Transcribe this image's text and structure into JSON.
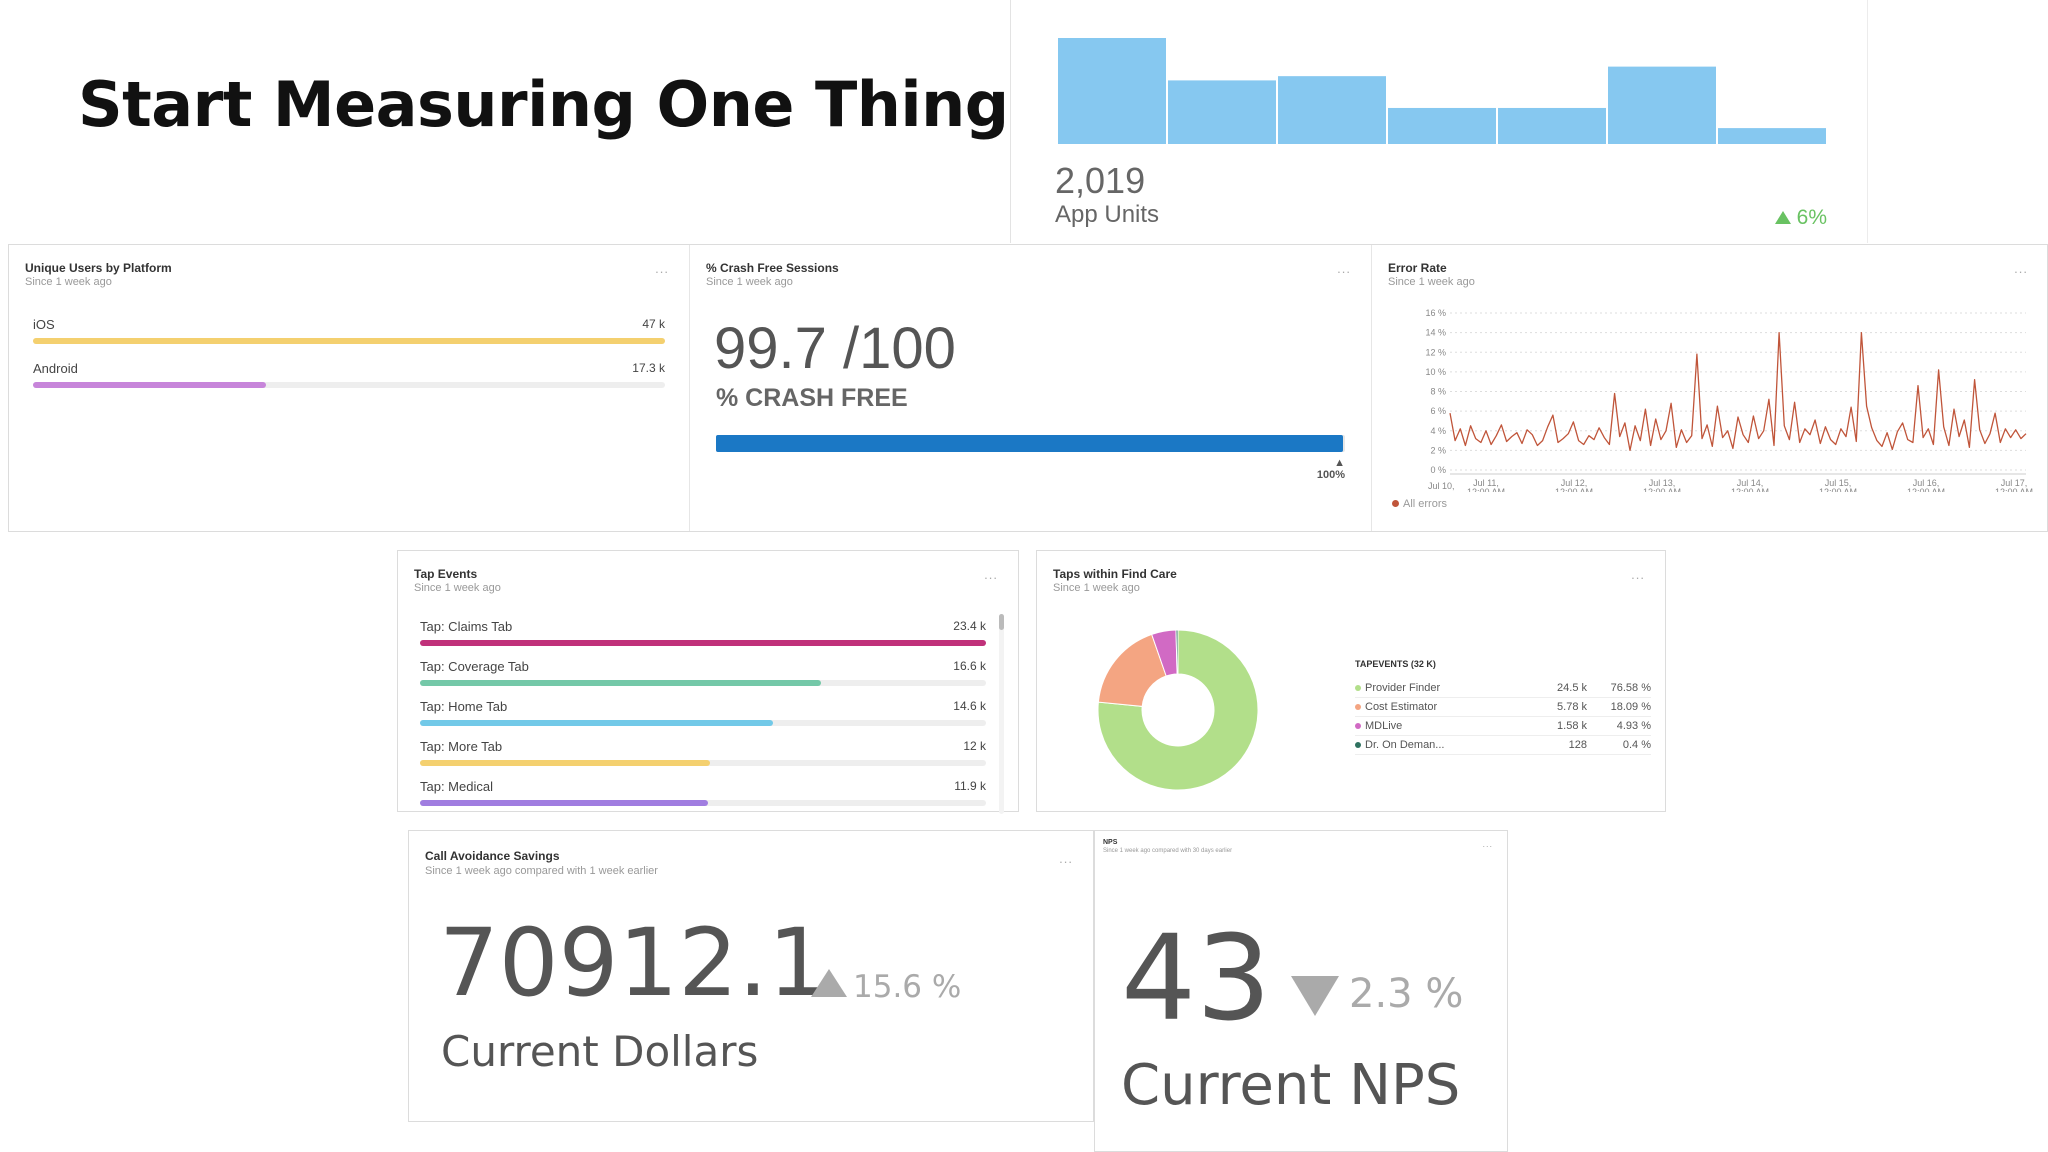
{
  "slide": {
    "title": "Start Measuring One Thing..."
  },
  "app_units": {
    "value": "2,019",
    "label": "App Units",
    "delta": "6%",
    "bar_levels": [
      1.0,
      0.6,
      0.64,
      0.34,
      0.34,
      0.73,
      0.15
    ],
    "bar_color": "#86c8f0",
    "delta_color": "#69c262"
  },
  "unique_users": {
    "title": "Unique Users by Platform",
    "subtitle": "Since 1 week ago",
    "menu": "...",
    "rows": [
      {
        "label": "iOS",
        "value": "47 k",
        "fraction": 1.0,
        "color": "#f4d06f"
      },
      {
        "label": "Android",
        "value": "17.3 k",
        "fraction": 0.368,
        "color": "#c785da"
      }
    ]
  },
  "crash_free": {
    "title": "% Crash Free Sessions",
    "subtitle": "Since 1 week ago",
    "menu": "...",
    "value": "99.7 /100",
    "unit": "% CRASH FREE",
    "progress_fraction": 0.997,
    "max_label": "100%",
    "bar_color": "#1b78c5"
  },
  "error_rate": {
    "title": "Error Rate",
    "subtitle": "Since 1 week ago",
    "menu": "...",
    "legend": "All errors",
    "line_color": "#c0553a"
  },
  "chart_data": {
    "type": "line",
    "title": "Error Rate",
    "xlabel": "",
    "ylabel": "",
    "ylim": [
      0,
      16
    ],
    "y_ticks": [
      "16 %",
      "14 %",
      "12 %",
      "10 %",
      "8 %",
      "6 %",
      "4 %",
      "2 %",
      "0 %"
    ],
    "x_ticks": [
      [
        "Jul 11,",
        "12:00 AM"
      ],
      [
        "Jul 12,",
        "12:00 AM"
      ],
      [
        "Jul 13,",
        "12:00 AM"
      ],
      [
        "Jul 14,",
        "12:00 AM"
      ],
      [
        "Jul 15,",
        "12:00 AM"
      ],
      [
        "Jul 16,",
        "12:00 AM"
      ],
      [
        "Jul 17,",
        "12:00 AM"
      ]
    ],
    "x_prefix": "Jul 10,",
    "series": [
      {
        "name": "All errors",
        "x": [
          0,
          0.25,
          0.5,
          0.75,
          1,
          1.25,
          1.5,
          1.75,
          2,
          2.25,
          2.5,
          2.75,
          3,
          3.25,
          3.5,
          3.75,
          4,
          4.25,
          4.5,
          4.75,
          5,
          5.25,
          5.5,
          5.75,
          6,
          6.25,
          6.5,
          6.75,
          7,
          7.25,
          7.5,
          7.75,
          8,
          8.25,
          8.5,
          8.75,
          9,
          9.25,
          9.5,
          9.75,
          10,
          10.25,
          10.5,
          10.75,
          11,
          11.25,
          11.5,
          11.75,
          12,
          12.25,
          12.5,
          12.75,
          13,
          13.25,
          13.5,
          13.75,
          14,
          14.25,
          14.5,
          14.75,
          15,
          15.25,
          15.5,
          15.75,
          16,
          16.25,
          16.5,
          16.75,
          17,
          17.25,
          17.5,
          17.75,
          18,
          18.25,
          18.5,
          18.75,
          19,
          19.25,
          19.5,
          19.75,
          20,
          20.25,
          20.5,
          20.75,
          21,
          21.25,
          21.5,
          21.75,
          22,
          22.25,
          22.5,
          22.75,
          23,
          23.25,
          23.5,
          23.75,
          24,
          24.25,
          24.5,
          24.75,
          25,
          25.25,
          25.5,
          25.75,
          26,
          26.25,
          26.5,
          26.75,
          27,
          27.25,
          27.5,
          27.75,
          28
        ],
        "values": [
          5.8,
          3,
          4.2,
          2.5,
          4.5,
          3.2,
          2.8,
          4,
          2.6,
          3.5,
          4.6,
          2.9,
          3.4,
          3.8,
          2.7,
          4.1,
          3.6,
          2.5,
          3,
          4.4,
          5.6,
          2.8,
          3.2,
          3.7,
          4.9,
          3,
          2.6,
          3.5,
          3.1,
          4.3,
          3.3,
          2.6,
          7.8,
          3.4,
          4.8,
          2,
          4.5,
          3,
          6.2,
          2.5,
          5.2,
          3.1,
          4,
          6.8,
          2.3,
          4.1,
          2.8,
          3.5,
          11.8,
          3.2,
          4.6,
          2.4,
          6.5,
          3.3,
          4,
          2.2,
          5.4,
          3.6,
          2.8,
          5.5,
          3.2,
          4,
          7.2,
          2.5,
          14,
          4.5,
          3.1,
          6.9,
          2.8,
          4.2,
          3.6,
          5.1,
          2.7,
          4.4,
          3.1,
          2.6,
          4.2,
          3.4,
          6.4,
          2.9,
          14,
          6.5,
          4.3,
          3,
          2.4,
          3.8,
          2.1,
          3.9,
          4.8,
          3.1,
          2.8,
          8.6,
          3.3,
          4.2,
          2.6,
          10.2,
          4.4,
          2.5,
          6.2,
          3.4,
          5.1,
          2.3,
          9.2,
          4.1,
          2.7,
          3.7,
          5.8,
          2.8,
          4.2,
          3.3,
          4.1,
          3.2,
          3.7
        ]
      }
    ]
  },
  "tap_events": {
    "title": "Tap Events",
    "subtitle": "Since 1 week ago",
    "menu": "...",
    "rows": [
      {
        "label": "Tap: Claims Tab",
        "value": "23.4 k",
        "fraction": 1.0,
        "color": "#c0317a"
      },
      {
        "label": "Tap: Coverage Tab",
        "value": "16.6 k",
        "fraction": 0.709,
        "color": "#74c8a8"
      },
      {
        "label": "Tap: Home Tab",
        "value": "14.6 k",
        "fraction": 0.624,
        "color": "#72c9e8"
      },
      {
        "label": "Tap: More Tab",
        "value": "12 k",
        "fraction": 0.513,
        "color": "#f4d06f"
      },
      {
        "label": "Tap: Medical",
        "value": "11.9 k",
        "fraction": 0.509,
        "color": "#a07de0"
      }
    ]
  },
  "find_care": {
    "title": "Taps within Find Care",
    "subtitle": "Since 1 week ago",
    "menu": "...",
    "legend_title": "TAPEVENTS (32 K)",
    "rows": [
      {
        "label": "Provider Finder",
        "count": "24.5 k",
        "pct": "76.58 %",
        "share": 0.7658,
        "color": "#b2df8a"
      },
      {
        "label": "Cost Estimator",
        "count": "5.78 k",
        "pct": "18.09 %",
        "share": 0.1809,
        "color": "#f4a582"
      },
      {
        "label": "MDLive",
        "count": "1.58 k",
        "pct": "4.93 %",
        "share": 0.0493,
        "color": "#d16ac4"
      },
      {
        "label": "Dr. On Deman...",
        "count": "128",
        "pct": "0.4 %",
        "share": 0.004,
        "color": "#2f7260"
      }
    ]
  },
  "call_avoidance": {
    "title": "Call Avoidance Savings",
    "subtitle": "Since 1 week ago compared with 1 week earlier",
    "menu": "...",
    "value": "70912.1",
    "delta": "15.6 %",
    "label": "Current Dollars"
  },
  "nps": {
    "title": "NPS",
    "subtitle": "Since 1 week ago compared with 30 days earlier",
    "menu": "...",
    "value": "43",
    "delta": "2.3 %",
    "label": "Current NPS"
  }
}
